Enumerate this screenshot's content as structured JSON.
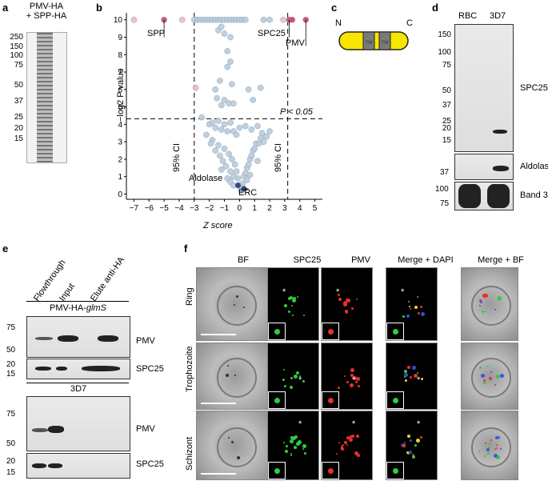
{
  "panels": {
    "a": "a",
    "b": "b",
    "c": "c",
    "d": "d",
    "e": "e",
    "f": "f"
  },
  "panel_a": {
    "header_line1": "PMV-HA",
    "header_line2": "+ SPP-HA",
    "markers": [
      "250",
      "150",
      "100",
      "75",
      "50",
      "37",
      "25",
      "20",
      "15"
    ]
  },
  "panel_b": {
    "pvalue_label": "P < 0.05",
    "ci_left": "95% CI",
    "ci_right": "95% CI",
    "labels": {
      "spp": "SPP",
      "spc25": "SPC25",
      "pmv": "PMV",
      "aldolase": "Aldolase",
      "erc": "ERC"
    }
  },
  "panel_c": {
    "n": "N",
    "c": "C",
    "tm": "TM"
  },
  "panel_d": {
    "lanes": [
      "RBC",
      "3D7"
    ],
    "markers_top": [
      "150",
      "100",
      "75",
      "50",
      "37",
      "25",
      "20",
      "15"
    ],
    "marker_mid": "37",
    "markers_bottom": [
      "100",
      "75"
    ],
    "labels": [
      "SPC25",
      "Aldolase",
      "Band 3"
    ]
  },
  "panel_e": {
    "lanes": [
      "Flowthrough",
      "Input",
      "Elute anti-HA"
    ],
    "top_title": "PMV-HA-",
    "top_title_italic": "glmS",
    "bottom_title": "3D7",
    "markers_pmv": [
      "75",
      "50"
    ],
    "markers_spc": [
      "20",
      "15"
    ],
    "label_pmv": "PMV",
    "label_spc": "SPC25"
  },
  "panel_f": {
    "columns": [
      "BF",
      "SPC25",
      "PMV",
      "Merge + DAPI",
      "Merge + BF"
    ],
    "rows": [
      "Ring",
      "Trophozoite",
      "Schizont"
    ],
    "star": "*"
  },
  "chart_data": {
    "type": "scatter",
    "title": "",
    "xlabel": "Z score",
    "ylabel": "−log2 P value",
    "xlim": [
      -7.5,
      5.5
    ],
    "ylim": [
      -0.3,
      10.4
    ],
    "xticks": [
      -7,
      -6,
      -5,
      -4,
      -3,
      -2,
      -1,
      0,
      1,
      2,
      3,
      4,
      5
    ],
    "yticks": [
      0,
      1,
      2,
      3,
      4,
      5,
      6,
      7,
      8,
      9,
      10
    ],
    "threshold_y": 4.32,
    "ci_x": [
      -3,
      3.2
    ],
    "series": [
      {
        "color": "#b9cbda",
        "points": [
          [
            -3.0,
            10
          ],
          [
            -2.8,
            10
          ],
          [
            -2.6,
            10
          ],
          [
            -2.4,
            10
          ],
          [
            -2.2,
            10
          ],
          [
            -2.0,
            10
          ],
          [
            -1.8,
            10
          ],
          [
            -1.6,
            10
          ],
          [
            -1.4,
            10
          ],
          [
            -1.2,
            10
          ],
          [
            -1.0,
            10
          ],
          [
            -0.8,
            10
          ],
          [
            -0.6,
            10
          ],
          [
            -0.4,
            10
          ],
          [
            -0.2,
            10
          ],
          [
            0.0,
            10
          ],
          [
            0.2,
            10
          ],
          [
            0.4,
            10
          ],
          [
            1.6,
            10
          ],
          [
            2.0,
            10
          ],
          [
            -1.4,
            9.4
          ],
          [
            -1.2,
            9.6
          ],
          [
            -1.0,
            9.2
          ],
          [
            -0.6,
            9.0
          ],
          [
            -0.8,
            8.2
          ],
          [
            -0.8,
            7.3
          ],
          [
            -0.6,
            7.6
          ],
          [
            -1.3,
            6.5
          ],
          [
            -0.5,
            6.3
          ],
          [
            -1.6,
            6.0
          ],
          [
            0.6,
            6.0
          ],
          [
            1.4,
            6.1
          ],
          [
            -1.5,
            5.5
          ],
          [
            -0.7,
            5.2
          ],
          [
            -1.2,
            5.1
          ],
          [
            -1.0,
            5.4
          ],
          [
            -0.4,
            5.2
          ],
          [
            0.9,
            5.4
          ],
          [
            -2.5,
            4.4
          ],
          [
            -2.0,
            4.0
          ],
          [
            -1.8,
            4.1
          ],
          [
            -1.6,
            3.8
          ],
          [
            -1.4,
            4.2
          ],
          [
            -1.2,
            3.7
          ],
          [
            -1.0,
            4.0
          ],
          [
            -0.8,
            3.6
          ],
          [
            -0.6,
            4.1
          ],
          [
            -0.4,
            3.6
          ],
          [
            -0.2,
            3.4
          ],
          [
            0.0,
            3.8
          ],
          [
            0.4,
            3.9
          ],
          [
            0.8,
            3.7
          ],
          [
            1.2,
            3.9
          ],
          [
            1.5,
            3.5
          ],
          [
            2.0,
            3.6
          ],
          [
            -2.2,
            3.4
          ],
          [
            -1.8,
            3.1
          ],
          [
            -1.4,
            2.8
          ],
          [
            -1.0,
            2.6
          ],
          [
            -0.7,
            2.3
          ],
          [
            -0.5,
            2.0
          ],
          [
            -0.3,
            1.7
          ],
          [
            -0.2,
            1.3
          ],
          [
            -0.1,
            0.9
          ],
          [
            0.0,
            0.5
          ],
          [
            0.1,
            0.2
          ],
          [
            0.2,
            0.6
          ],
          [
            0.3,
            1.0
          ],
          [
            0.5,
            1.5
          ],
          [
            0.7,
            2.0
          ],
          [
            0.9,
            2.5
          ],
          [
            1.1,
            2.9
          ],
          [
            1.4,
            3.2
          ],
          [
            1.8,
            3.3
          ],
          [
            -1.9,
            2.9
          ],
          [
            -1.6,
            2.5
          ],
          [
            -1.3,
            2.2
          ],
          [
            -1.1,
            1.9
          ],
          [
            -0.9,
            1.6
          ],
          [
            -0.6,
            1.3
          ],
          [
            -0.4,
            1.0
          ],
          [
            0.4,
            1.2
          ],
          [
            0.6,
            1.7
          ],
          [
            0.8,
            2.2
          ],
          [
            1.0,
            2.6
          ],
          [
            1.3,
            2.9
          ],
          [
            1.6,
            3.0
          ],
          [
            -0.8,
            0.9
          ],
          [
            -0.6,
            0.7
          ],
          [
            -0.4,
            0.5
          ],
          [
            0.5,
            0.8
          ],
          [
            0.7,
            1.1
          ],
          [
            -1.2,
            1.4
          ],
          [
            1.2,
            1.9
          ]
        ]
      },
      {
        "color": "#f2b8c6",
        "points": [
          [
            -7,
            10
          ],
          [
            -3.8,
            10
          ],
          [
            -2.9,
            6.1
          ],
          [
            2.9,
            10
          ]
        ]
      },
      {
        "color": "#d0407a",
        "points": [
          [
            -5.0,
            10
          ],
          [
            3.3,
            10
          ],
          [
            3.5,
            10
          ],
          [
            4.4,
            10
          ]
        ]
      },
      {
        "color": "#2b3a78",
        "points": [
          [
            -0.1,
            0.5
          ],
          [
            0.3,
            0.3
          ]
        ]
      }
    ]
  }
}
